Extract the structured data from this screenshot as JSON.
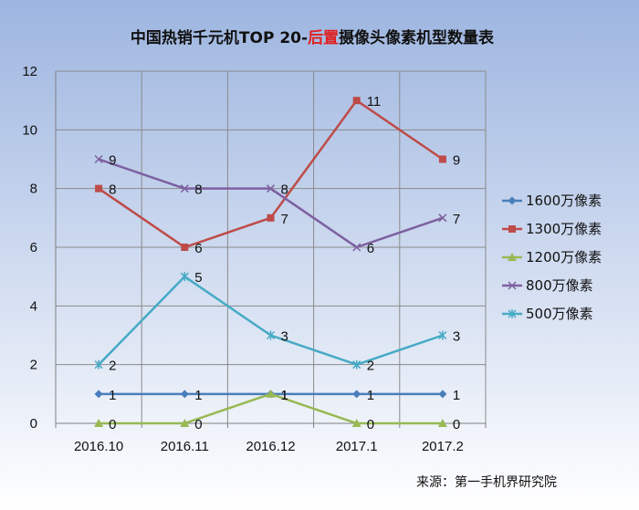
{
  "title": {
    "prefix": "中国热销千元机TOP 20-",
    "highlight": "后置",
    "suffix": "摄像头像素机型数量表"
  },
  "source": "来源：第一手机界研究院",
  "colors": {
    "background_top": "#9db5e0",
    "background_bottom": "#ffffff",
    "title_highlight": "#e02020"
  },
  "chart_data": {
    "type": "line",
    "title": "中国热销千元机TOP 20-后置摄像头像素机型数量表",
    "categories": [
      "2016.10",
      "2016.11",
      "2016.12",
      "2017.1",
      "2017.2"
    ],
    "ylim": [
      0,
      12
    ],
    "yticks": [
      0,
      2,
      4,
      6,
      8,
      10,
      12
    ],
    "grid": true,
    "legend_position": "right",
    "series": [
      {
        "name": "1600万像素",
        "values": [
          1,
          1,
          1,
          1,
          1
        ],
        "color": "#4a7ebb",
        "marker": "diamond"
      },
      {
        "name": "1300万像素",
        "values": [
          8,
          6,
          7,
          11,
          9
        ],
        "color": "#be4b48",
        "marker": "square"
      },
      {
        "name": "1200万像素",
        "values": [
          0,
          0,
          1,
          0,
          0
        ],
        "color": "#98b954",
        "marker": "triangle"
      },
      {
        "name": "800万像素",
        "values": [
          9,
          8,
          8,
          6,
          7
        ],
        "color": "#7d60a0",
        "marker": "x"
      },
      {
        "name": "500万像素",
        "values": [
          2,
          5,
          3,
          2,
          3
        ],
        "color": "#46aac5",
        "marker": "star"
      }
    ]
  }
}
